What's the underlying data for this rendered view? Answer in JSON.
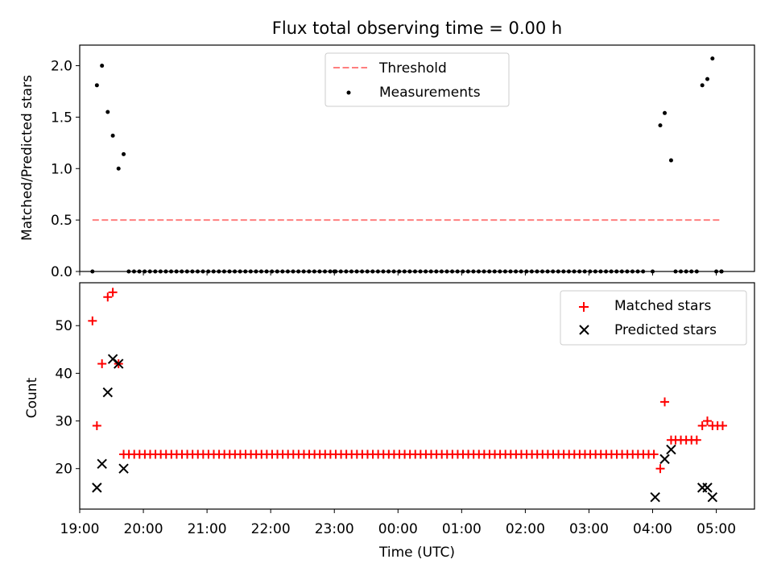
{
  "title": "Flux total observing time = 0.00 h",
  "chart_data": [
    {
      "type": "scatter",
      "ylabel": "Matched/Predicted stars",
      "xlim": [
        19.0,
        29.6
      ],
      "ylim": [
        0,
        2.2
      ],
      "yticks": [
        0.0,
        0.5,
        1.0,
        1.5,
        2.0
      ],
      "ytick_labels": [
        "0.0",
        "0.5",
        "1.0",
        "1.5",
        "2.0"
      ],
      "legend_position": "upper center",
      "threshold": {
        "name": "Threshold",
        "value": 0.5,
        "x_start": 19.2,
        "x_end": 29.05,
        "color": "#ff7f7f"
      },
      "measurements": {
        "name": "Measurements",
        "color": "#000000",
        "points": [
          [
            19.2,
            0.0
          ],
          [
            19.27,
            1.81
          ],
          [
            19.35,
            2.0
          ],
          [
            19.44,
            1.55
          ],
          [
            19.52,
            1.32
          ],
          [
            19.61,
            1.0
          ],
          [
            19.69,
            1.14
          ],
          [
            23.0,
            0.0
          ],
          [
            28.0,
            0.0
          ],
          [
            28.12,
            1.42
          ],
          [
            28.19,
            1.54
          ],
          [
            28.29,
            1.08
          ],
          [
            28.78,
            1.81
          ],
          [
            28.86,
            1.87
          ],
          [
            28.94,
            2.07
          ],
          [
            29.08,
            0.0
          ]
        ],
        "zero_runs": [
          {
            "x_start": 19.77,
            "x_end": 27.9,
            "step": 0.0833,
            "y": 0.0
          },
          {
            "x_start": 28.36,
            "x_end": 28.71,
            "step": 0.0833,
            "y": 0.0
          },
          {
            "x_start": 29.0,
            "x_end": 29.1,
            "step": 0.0833,
            "y": 0.0
          }
        ]
      }
    },
    {
      "type": "scatter",
      "ylabel": "Count",
      "xlabel": "Time (UTC)",
      "xlim": [
        19.0,
        29.6
      ],
      "ylim": [
        11.5,
        59.0
      ],
      "yticks": [
        20,
        30,
        40,
        50
      ],
      "ytick_labels": [
        "20",
        "30",
        "40",
        "50"
      ],
      "xticks": [
        19,
        20,
        21,
        22,
        23,
        24,
        25,
        26,
        27,
        28,
        29
      ],
      "xtick_labels": [
        "19:00",
        "20:00",
        "21:00",
        "22:00",
        "23:00",
        "00:00",
        "01:00",
        "02:00",
        "03:00",
        "04:00",
        "05:00"
      ],
      "legend_position": "upper right",
      "series": [
        {
          "name": "Matched stars",
          "marker": "+",
          "color": "#ff0000",
          "points": [
            [
              19.2,
              51
            ],
            [
              19.27,
              29
            ],
            [
              19.35,
              42
            ],
            [
              19.44,
              56
            ],
            [
              19.52,
              57
            ],
            [
              19.61,
              42
            ],
            [
              28.12,
              20
            ],
            [
              28.19,
              34
            ],
            [
              28.29,
              26
            ],
            [
              28.78,
              29
            ],
            [
              28.86,
              30
            ],
            [
              28.94,
              29
            ],
            [
              29.02,
              29
            ],
            [
              29.1,
              29
            ]
          ],
          "runs": [
            {
              "x_start": 19.69,
              "x_end": 28.04,
              "step": 0.0833,
              "y": 23
            },
            {
              "x_start": 28.36,
              "x_end": 28.71,
              "step": 0.0833,
              "y": 26
            }
          ]
        },
        {
          "name": "Predicted stars",
          "marker": "x",
          "color": "#000000",
          "points": [
            [
              19.27,
              16
            ],
            [
              19.35,
              21
            ],
            [
              19.44,
              36
            ],
            [
              19.52,
              43
            ],
            [
              19.61,
              42
            ],
            [
              19.69,
              20
            ],
            [
              28.04,
              14
            ],
            [
              28.19,
              22
            ],
            [
              28.29,
              24
            ],
            [
              28.78,
              16
            ],
            [
              28.86,
              16
            ],
            [
              28.94,
              14
            ]
          ]
        }
      ]
    }
  ]
}
